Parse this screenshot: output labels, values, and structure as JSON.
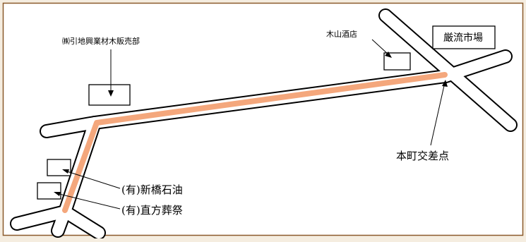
{
  "map": {
    "background": "#f5ede0",
    "frame_color": "#8b5a2b",
    "road_fill": "#ffffff",
    "road_outline": "#000000",
    "route_color": "#f4a77c",
    "labels": {
      "lumber": "㈱引地興業材木販売部",
      "liquor": "木山酒店",
      "market": "厳流市場",
      "intersection": "本町交差点",
      "stone": "(有)新橋石油",
      "funeral": "(有)直方葬祭"
    }
  }
}
